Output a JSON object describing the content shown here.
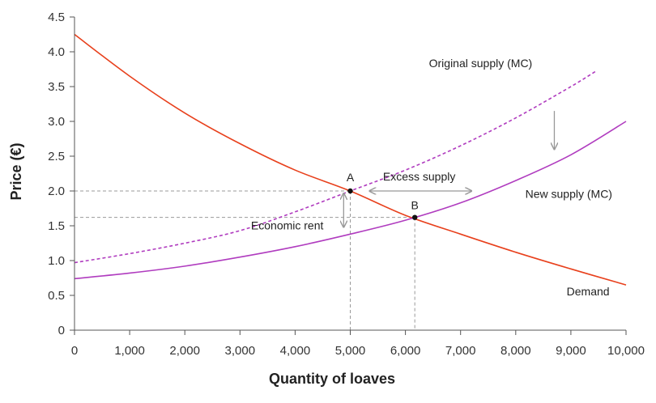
{
  "chart_data": {
    "type": "line",
    "xlabel": "Quantity of loaves",
    "ylabel": "Price (€)",
    "xlim": [
      0,
      10000
    ],
    "ylim": [
      0,
      4.5
    ],
    "x_ticks": [
      0,
      1000,
      2000,
      3000,
      4000,
      5000,
      6000,
      7000,
      8000,
      9000,
      10000
    ],
    "x_tick_labels": [
      "0",
      "1,000",
      "2,000",
      "3,000",
      "4,000",
      "5,000",
      "6,000",
      "7,000",
      "8,000",
      "9,000",
      "10,000"
    ],
    "y_ticks": [
      0,
      0.5,
      1,
      1.5,
      2,
      2.5,
      3,
      3.5,
      4,
      4.5
    ],
    "y_tick_labels": [
      "0",
      "0.5",
      "1.0",
      "1.5",
      "2.0",
      "2.5",
      "3.0",
      "3.5",
      "4.0",
      "4.5"
    ],
    "grid": false,
    "colors": {
      "demand": "#e8401c",
      "supply": "#b03cbf",
      "guide": "#999999"
    },
    "series": [
      {
        "name": "Demand",
        "key": "demand",
        "style": "solid",
        "x": [
          0,
          1000,
          2000,
          3000,
          4000,
          5000,
          6000,
          7000,
          8000,
          9000,
          10000
        ],
        "y": [
          4.25,
          3.65,
          3.12,
          2.68,
          2.3,
          2.0,
          1.65,
          1.38,
          1.12,
          0.88,
          0.65
        ]
      },
      {
        "name": "Original supply (MC)",
        "key": "original_supply",
        "style": "dashed",
        "x": [
          0,
          1000,
          2000,
          3000,
          4000,
          5000,
          6000,
          7000,
          8000,
          9000,
          9450
        ],
        "y": [
          0.97,
          1.1,
          1.25,
          1.43,
          1.7,
          2.0,
          2.3,
          2.65,
          3.05,
          3.5,
          3.72
        ]
      },
      {
        "name": "New supply (MC)",
        "key": "new_supply",
        "style": "solid",
        "x": [
          0,
          1000,
          2000,
          3000,
          4000,
          5000,
          6000,
          7000,
          8000,
          9000,
          10000
        ],
        "y": [
          0.74,
          0.82,
          0.92,
          1.05,
          1.2,
          1.38,
          1.58,
          1.83,
          2.15,
          2.52,
          3.0
        ]
      }
    ],
    "points": [
      {
        "label": "A",
        "x": 5000,
        "y": 2.0
      },
      {
        "label": "B",
        "x": 6170,
        "y": 1.62
      }
    ],
    "annotations": {
      "excess_supply": {
        "text": "Excess supply",
        "x_from": 5350,
        "x_to": 7200,
        "y": 2.0,
        "text_x": 6250,
        "text_y": 2.15
      },
      "economic_rent": {
        "text": "Economic rent",
        "x": 4880,
        "y_from": 2.0,
        "y_to": 1.62,
        "text_x": 3200,
        "text_y": 1.45
      },
      "shift_arrow": {
        "x": 8700,
        "y_from": 3.15,
        "y_to": 2.6
      }
    },
    "series_label_positions": {
      "demand": [
        9700,
        0.5
      ],
      "original_supply": [
        8300,
        3.78
      ],
      "new_supply": [
        9750,
        1.9
      ]
    }
  }
}
